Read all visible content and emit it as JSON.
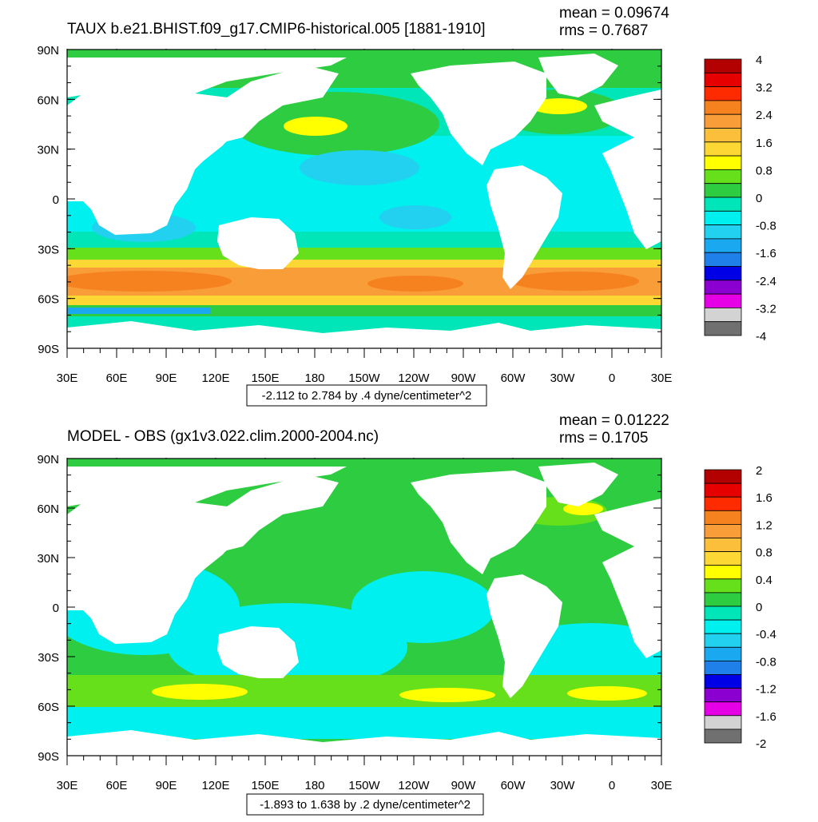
{
  "panels": [
    {
      "title": "TAUX b.e21.BHIST.f09_g17.CMIP6-historical.005 [1881-1910]",
      "mean_text": "mean = 0.09674",
      "rms_text": "rms = 0.7687",
      "range_text": "-2.112 to 2.784 by .4 dyne/centimeter^2",
      "lat_labels": [
        "90N",
        "60N",
        "30N",
        "0",
        "30S",
        "60S",
        "90S"
      ],
      "lon_labels": [
        "30E",
        "60E",
        "90E",
        "120E",
        "150E",
        "180",
        "150W",
        "120W",
        "90W",
        "60W",
        "30W",
        "0",
        "30E"
      ],
      "colorbar": {
        "labels": [
          "4",
          "3.2",
          "2.4",
          "1.6",
          "0.8",
          "0",
          "-0.8",
          "-1.6",
          "-2.4",
          "-3.2",
          "-4"
        ],
        "colors": [
          "#b30000",
          "#e60000",
          "#ff2b00",
          "#f5821f",
          "#f99d38",
          "#fbbf3b",
          "#fdd835",
          "#ffff00",
          "#66e01a",
          "#2ecc40",
          "#00e6b8",
          "#00f0f0",
          "#22d0f0",
          "#1aa8f0",
          "#1e80e8",
          "#0000e6",
          "#8b00d0",
          "#e600e6",
          "#d3d3d3",
          "#707070"
        ]
      }
    },
    {
      "title": "MODEL - OBS (gx1v3.022.clim.2000-2004.nc)",
      "mean_text": "mean = 0.01222",
      "rms_text": "rms = 0.1705",
      "range_text": "-1.893 to 1.638 by .2 dyne/centimeter^2",
      "lat_labels": [
        "90N",
        "60N",
        "30N",
        "0",
        "30S",
        "60S",
        "90S"
      ],
      "lon_labels": [
        "30E",
        "60E",
        "90E",
        "120E",
        "150E",
        "180",
        "150W",
        "120W",
        "90W",
        "60W",
        "30W",
        "0",
        "30E"
      ],
      "colorbar": {
        "labels": [
          "2",
          "1.6",
          "1.2",
          "0.8",
          "0.4",
          "0",
          "-0.4",
          "-0.8",
          "-1.2",
          "-1.6",
          "-2"
        ],
        "colors": [
          "#b30000",
          "#e60000",
          "#ff2b00",
          "#f5821f",
          "#f99d38",
          "#fbbf3b",
          "#fdd835",
          "#ffff00",
          "#66e01a",
          "#2ecc40",
          "#00e6b8",
          "#00f0f0",
          "#22d0f0",
          "#1aa8f0",
          "#1e80e8",
          "#0000e6",
          "#8b00d0",
          "#e600e6",
          "#d3d3d3",
          "#707070"
        ]
      }
    }
  ],
  "map_colors": {
    "land": "#ffffff",
    "contour": "#1a1a1a"
  }
}
